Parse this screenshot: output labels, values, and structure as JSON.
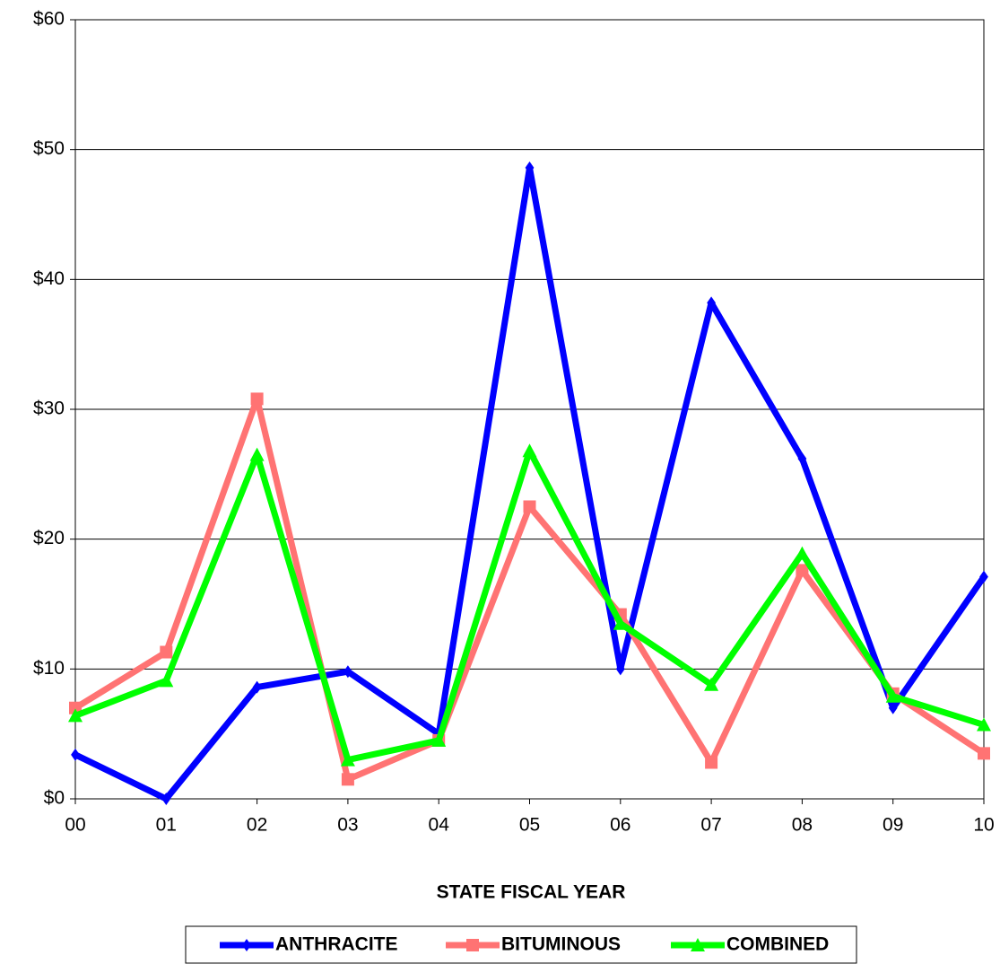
{
  "chart_data": {
    "type": "line",
    "x_label": "STATE FISCAL YEAR",
    "categories": [
      "00",
      "01",
      "02",
      "03",
      "04",
      "05",
      "06",
      "07",
      "08",
      "09",
      "10"
    ],
    "series": [
      {
        "name": "ANTHRACITE",
        "color": "#0000ff",
        "marker": "diamond",
        "values": [
          3.4,
          0,
          8.6,
          9.8,
          5.0,
          48.6,
          10.0,
          38.2,
          26.2,
          7.0,
          17.1
        ]
      },
      {
        "name": "BITUMINOUS",
        "color": "#ff7373",
        "marker": "square",
        "values": [
          7.0,
          11.3,
          30.8,
          1.5,
          4.5,
          22.5,
          14.2,
          2.8,
          17.6,
          8.1,
          3.5
        ]
      },
      {
        "name": "COMBINED",
        "color": "#00ff00",
        "marker": "triangle",
        "values": [
          6.4,
          9.1,
          26.5,
          3.0,
          4.5,
          26.8,
          13.5,
          8.8,
          18.9,
          7.9,
          5.7
        ]
      }
    ],
    "ylim": [
      0,
      60
    ],
    "yticks": [
      {
        "value": 0,
        "label": "$0"
      },
      {
        "value": 10,
        "label": "$10"
      },
      {
        "value": 20,
        "label": "$20"
      },
      {
        "value": 30,
        "label": "$30"
      },
      {
        "value": 40,
        "label": "$40"
      },
      {
        "value": 50,
        "label": "$50"
      },
      {
        "value": 60,
        "label": "$60"
      }
    ],
    "grid": true,
    "legend": "bottom"
  }
}
